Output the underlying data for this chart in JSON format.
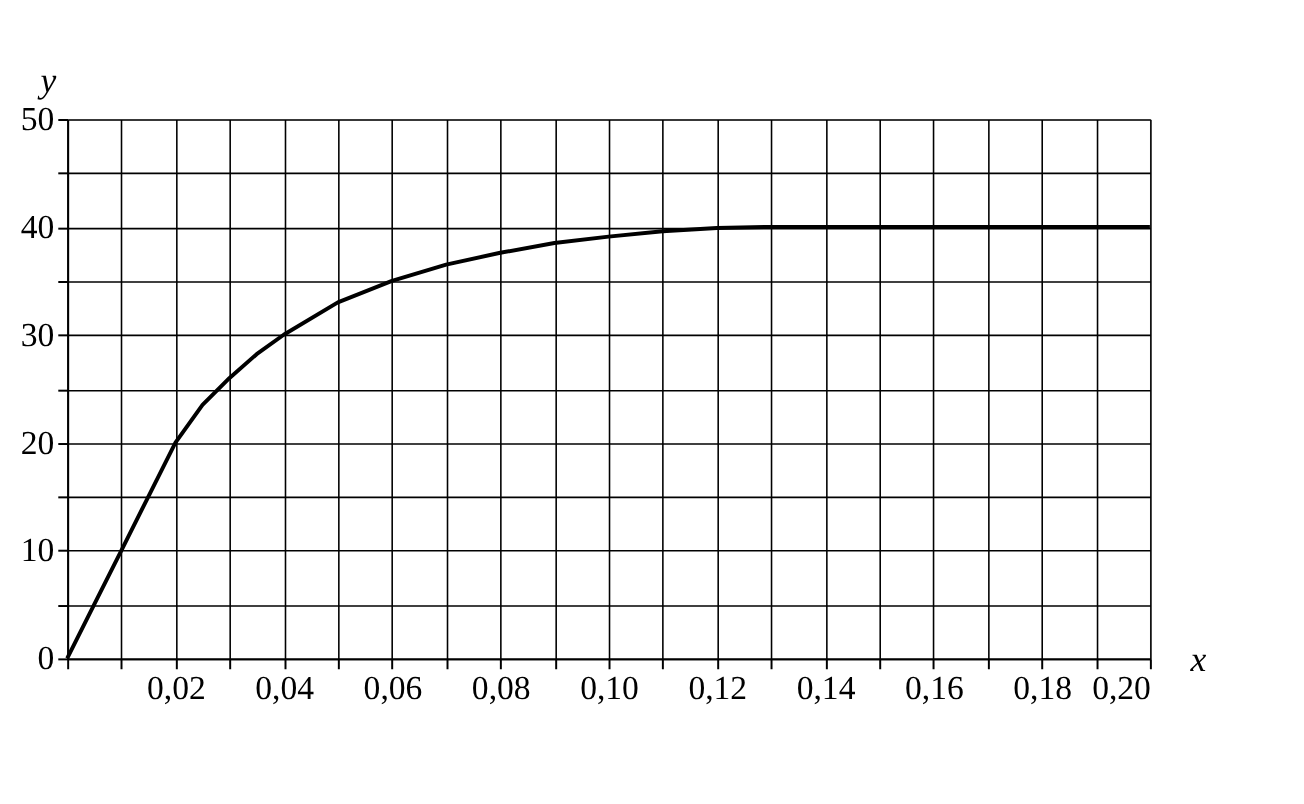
{
  "chart_data": {
    "type": "line",
    "xlabel": "x",
    "ylabel": "y",
    "x": [
      0,
      0.005,
      0.01,
      0.015,
      0.02,
      0.025,
      0.03,
      0.035,
      0.04,
      0.05,
      0.06,
      0.07,
      0.08,
      0.09,
      0.1,
      0.11,
      0.12,
      0.13,
      0.14,
      0.16,
      0.18,
      0.2
    ],
    "series": [
      {
        "color": "#000000",
        "values": [
          0,
          5,
          10,
          15,
          20,
          23.5,
          26,
          28.2,
          30,
          33,
          35,
          36.5,
          37.6,
          38.5,
          39.1,
          39.6,
          39.9,
          40,
          40,
          40,
          40,
          40
        ]
      }
    ],
    "xlim": [
      0,
      0.2
    ],
    "ylim": [
      0,
      50
    ],
    "xticks": [
      {
        "value": 0,
        "label": null
      },
      {
        "value": 0.01,
        "label": null
      },
      {
        "value": 0.02,
        "label": "0,02"
      },
      {
        "value": 0.03,
        "label": null
      },
      {
        "value": 0.04,
        "label": "0,04"
      },
      {
        "value": 0.05,
        "label": null
      },
      {
        "value": 0.06,
        "label": "0,06"
      },
      {
        "value": 0.07,
        "label": null
      },
      {
        "value": 0.08,
        "label": "0,08"
      },
      {
        "value": 0.09,
        "label": null
      },
      {
        "value": 0.1,
        "label": "0,10"
      },
      {
        "value": 0.11,
        "label": null
      },
      {
        "value": 0.12,
        "label": "0,12"
      },
      {
        "value": 0.13,
        "label": null
      },
      {
        "value": 0.14,
        "label": "0,14"
      },
      {
        "value": 0.15,
        "label": null
      },
      {
        "value": 0.16,
        "label": "0,16"
      },
      {
        "value": 0.17,
        "label": null
      },
      {
        "value": 0.18,
        "label": "0,18"
      },
      {
        "value": 0.19,
        "label": null
      },
      {
        "value": 0.2,
        "label": "0,20"
      }
    ],
    "yticks": [
      0,
      {
        "value": 5,
        "label": null
      },
      10,
      {
        "value": 15,
        "label": null
      },
      20,
      {
        "value": 25,
        "label": null
      },
      30,
      {
        "value": 35,
        "label": null
      },
      40,
      {
        "value": 45,
        "label": null
      },
      50
    ],
    "grid": true
  }
}
